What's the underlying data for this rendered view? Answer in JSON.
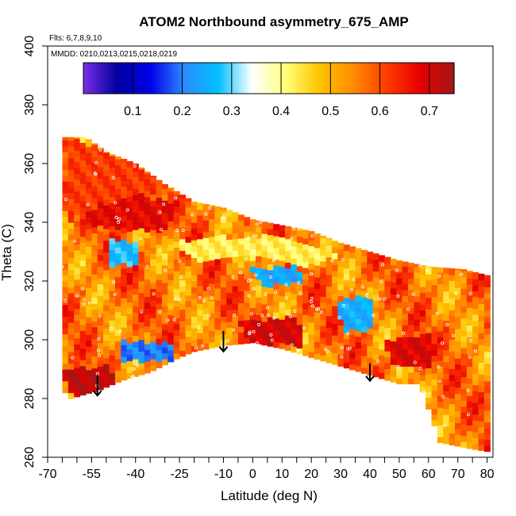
{
  "chart_data": {
    "type": "heatmap",
    "title": "ATOM2 Northbound asymmetry_675_AMP",
    "annotations": {
      "flights": "Flts: 6,7,8,9,10",
      "dates": "MMDD: 0210,0213,0215,0218,0219"
    },
    "xlabel": "Latitude (deg N)",
    "ylabel": "Theta (C)",
    "xlim": [
      -70,
      82
    ],
    "ylim": [
      260,
      400
    ],
    "x_ticks": [
      -70,
      -55,
      -40,
      -25,
      -10,
      0,
      10,
      20,
      30,
      40,
      50,
      60,
      70,
      80
    ],
    "x_tick_labels": [
      "-70",
      "-55",
      "-40",
      "-25",
      "-10",
      "0",
      "10",
      "20",
      "30",
      "40",
      "50",
      "60",
      "70",
      "80"
    ],
    "x_minor_ticks": [
      -65,
      -60,
      -50,
      -45,
      -35,
      -30,
      -20,
      -15,
      -5,
      5,
      15,
      25,
      35,
      45,
      55,
      65,
      75
    ],
    "y_ticks": [
      260,
      280,
      300,
      320,
      340,
      360,
      380,
      400
    ],
    "y_tick_labels": [
      "260",
      "280",
      "300",
      "320",
      "340",
      "360",
      "380",
      "400"
    ],
    "colorbar": {
      "range": [
        0.0,
        0.75
      ],
      "ticks": [
        0.1,
        0.2,
        0.3,
        0.4,
        0.5,
        0.6,
        0.7
      ],
      "tick_labels": [
        "0.1",
        "0.2",
        "0.3",
        "0.4",
        "0.5",
        "0.6",
        "0.7"
      ],
      "colors": [
        "#7d2ee8",
        "#00009e",
        "#0000e8",
        "#2e8cff",
        "#00bfff",
        "#ffffff",
        "#ffff7a",
        "#ffc400",
        "#ff8c00",
        "#ff3c00",
        "#e60000",
        "#a11717"
      ]
    },
    "data_envelope": {
      "upper": [
        [
          -63,
          369
        ],
        [
          -57,
          369
        ],
        [
          -50,
          364
        ],
        [
          -40,
          360
        ],
        [
          -30,
          353
        ],
        [
          -20,
          347
        ],
        [
          -10,
          345
        ],
        [
          0,
          341
        ],
        [
          10,
          339
        ],
        [
          20,
          337
        ],
        [
          30,
          333
        ],
        [
          40,
          330
        ],
        [
          50,
          327
        ],
        [
          60,
          325
        ],
        [
          72,
          324
        ],
        [
          80,
          322
        ]
      ],
      "lower": [
        [
          80,
          262
        ],
        [
          74,
          263
        ],
        [
          64,
          265
        ],
        [
          57,
          285
        ],
        [
          50,
          285
        ],
        [
          40,
          288
        ],
        [
          30,
          291
        ],
        [
          20,
          294
        ],
        [
          10,
          297
        ],
        [
          0,
          299
        ],
        [
          -10,
          298
        ],
        [
          -20,
          296
        ],
        [
          -25,
          294
        ],
        [
          -35,
          289
        ],
        [
          -45,
          286
        ],
        [
          -52,
          283
        ],
        [
          -62,
          280
        ],
        [
          -65,
          283
        ]
      ]
    },
    "regions": [
      {
        "name": "upper-left-band",
        "value": 0.62,
        "points": [
          [
            -63,
            369
          ],
          [
            -45,
            362
          ],
          [
            -30,
            353
          ],
          [
            -40,
            350
          ],
          [
            -55,
            345
          ],
          [
            -63,
            340
          ]
        ]
      },
      {
        "name": "red-wedge",
        "value": 0.68,
        "points": [
          [
            -55,
            345
          ],
          [
            -40,
            350
          ],
          [
            -25,
            346
          ],
          [
            -30,
            337
          ],
          [
            -45,
            338
          ],
          [
            -60,
            340
          ]
        ]
      },
      {
        "name": "mid-white-band",
        "value": 0.43,
        "points": [
          [
            -30,
            333
          ],
          [
            -10,
            335
          ],
          [
            10,
            336
          ],
          [
            30,
            329
          ],
          [
            20,
            325
          ],
          [
            0,
            328
          ],
          [
            -20,
            327
          ]
        ]
      },
      {
        "name": "left-blue-patch",
        "value": 0.27,
        "points": [
          [
            -50,
            335
          ],
          [
            -40,
            333
          ],
          [
            -38,
            326
          ],
          [
            -48,
            325
          ]
        ]
      },
      {
        "name": "mid-blue-streak",
        "value": 0.24,
        "points": [
          [
            0,
            324
          ],
          [
            15,
            325
          ],
          [
            18,
            320
          ],
          [
            3,
            318
          ]
        ]
      },
      {
        "name": "right-blue-patch",
        "value": 0.25,
        "points": [
          [
            28,
            313
          ],
          [
            40,
            315
          ],
          [
            42,
            304
          ],
          [
            32,
            303
          ]
        ]
      },
      {
        "name": "lower-left-blue",
        "value": 0.2,
        "points": [
          [
            -45,
            300
          ],
          [
            -28,
            299
          ],
          [
            -26,
            293
          ],
          [
            -44,
            293
          ]
        ]
      },
      {
        "name": "bottom-left-deep-red",
        "value": 0.72,
        "points": [
          [
            -65,
            290
          ],
          [
            -50,
            291
          ],
          [
            -45,
            284
          ],
          [
            -62,
            281
          ]
        ]
      },
      {
        "name": "center-deep-red",
        "value": 0.7,
        "points": [
          [
            -5,
            306
          ],
          [
            15,
            308
          ],
          [
            18,
            298
          ],
          [
            0,
            299
          ]
        ]
      },
      {
        "name": "right-deep-red",
        "value": 0.69,
        "points": [
          [
            45,
            300
          ],
          [
            60,
            302
          ],
          [
            62,
            290
          ],
          [
            48,
            291
          ]
        ]
      }
    ],
    "arrows": [
      [
        -53,
        288,
        281
      ],
      [
        -10,
        303,
        296
      ],
      [
        40,
        292,
        286
      ]
    ]
  }
}
